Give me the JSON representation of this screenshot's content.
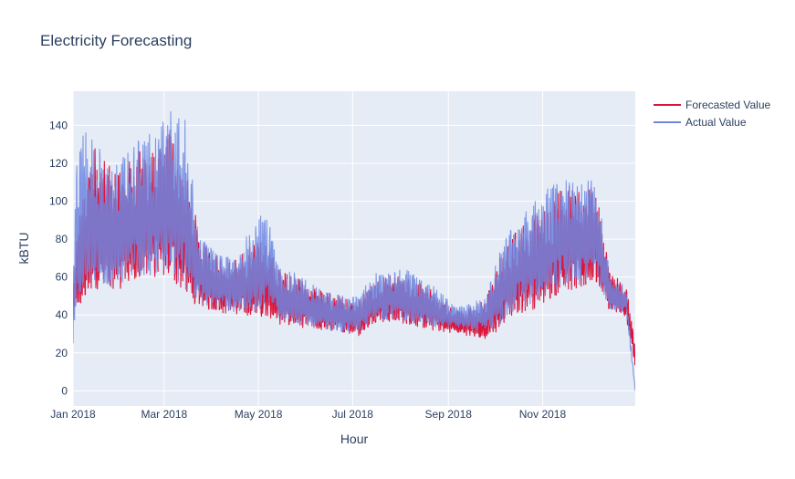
{
  "chart_data": {
    "type": "line",
    "title": "Electricity Forecasting",
    "xlabel": "Hour",
    "ylabel": "kBTU",
    "x_range": [
      "2018-01-01",
      "2018-12-31"
    ],
    "ylim": [
      -8,
      158
    ],
    "x_ticks": [
      {
        "label": "Jan 2018",
        "date": "2018-01-01"
      },
      {
        "label": "Mar 2018",
        "date": "2018-03-01"
      },
      {
        "label": "May 2018",
        "date": "2018-05-01"
      },
      {
        "label": "Jul 2018",
        "date": "2018-07-01"
      },
      {
        "label": "Sep 2018",
        "date": "2018-09-01"
      },
      {
        "label": "Nov 2018",
        "date": "2018-11-01"
      }
    ],
    "y_ticks": [
      0,
      20,
      40,
      60,
      80,
      100,
      120,
      140
    ],
    "grid": true,
    "legend": "right",
    "series": [
      {
        "name": "Forecasted Value",
        "color": "#dc143c",
        "envelope": {
          "dates": [
            "2018-01-01",
            "2018-01-04",
            "2018-01-15",
            "2018-01-25",
            "2018-02-05",
            "2018-02-15",
            "2018-02-25",
            "2018-03-05",
            "2018-03-15",
            "2018-03-25",
            "2018-04-05",
            "2018-04-15",
            "2018-04-28",
            "2018-05-05",
            "2018-05-15",
            "2018-05-25",
            "2018-06-05",
            "2018-06-15",
            "2018-06-25",
            "2018-07-05",
            "2018-07-15",
            "2018-07-25",
            "2018-08-05",
            "2018-08-15",
            "2018-08-25",
            "2018-09-05",
            "2018-09-15",
            "2018-09-25",
            "2018-10-05",
            "2018-10-15",
            "2018-10-25",
            "2018-11-05",
            "2018-11-15",
            "2018-11-25",
            "2018-12-05",
            "2018-12-15",
            "2018-12-25",
            "2018-12-31"
          ],
          "low": [
            35,
            40,
            50,
            48,
            52,
            55,
            56,
            55,
            45,
            42,
            40,
            38,
            35,
            38,
            32,
            32,
            32,
            30,
            30,
            28,
            35,
            35,
            34,
            32,
            30,
            30,
            28,
            26,
            30,
            38,
            40,
            45,
            50,
            50,
            55,
            40,
            38,
            10
          ],
          "high": [
            55,
            90,
            130,
            118,
            120,
            132,
            125,
            140,
            118,
            78,
            72,
            70,
            78,
            80,
            65,
            60,
            55,
            52,
            50,
            48,
            58,
            62,
            60,
            56,
            52,
            42,
            44,
            48,
            72,
            85,
            92,
            98,
            110,
            105,
            108,
            62,
            56,
            25
          ]
        }
      },
      {
        "name": "Actual Value",
        "color": "#6d86e0",
        "envelope": {
          "dates": [
            "2018-01-01",
            "2018-01-04",
            "2018-01-15",
            "2018-01-25",
            "2018-02-05",
            "2018-02-15",
            "2018-02-25",
            "2018-03-05",
            "2018-03-15",
            "2018-03-25",
            "2018-04-05",
            "2018-04-15",
            "2018-04-28",
            "2018-05-05",
            "2018-05-15",
            "2018-05-25",
            "2018-06-05",
            "2018-06-15",
            "2018-06-25",
            "2018-07-05",
            "2018-07-15",
            "2018-07-25",
            "2018-08-05",
            "2018-08-15",
            "2018-08-25",
            "2018-09-05",
            "2018-09-15",
            "2018-09-25",
            "2018-10-05",
            "2018-10-15",
            "2018-10-25",
            "2018-11-05",
            "2018-11-15",
            "2018-11-25",
            "2018-12-05",
            "2018-12-15",
            "2018-12-25",
            "2018-12-31"
          ],
          "low": [
            20,
            42,
            52,
            50,
            55,
            56,
            58,
            56,
            48,
            44,
            42,
            40,
            38,
            40,
            35,
            34,
            32,
            31,
            30,
            30,
            36,
            36,
            35,
            34,
            32,
            33,
            32,
            30,
            33,
            40,
            42,
            48,
            52,
            52,
            58,
            42,
            40,
            0
          ],
          "high": [
            60,
            140,
            133,
            118,
            125,
            136,
            138,
            150,
            143,
            80,
            74,
            70,
            88,
            100,
            68,
            62,
            56,
            52,
            50,
            50,
            63,
            64,
            64,
            58,
            54,
            44,
            46,
            50,
            75,
            92,
            98,
            108,
            112,
            108,
            114,
            60,
            55,
            0
          ]
        }
      }
    ]
  }
}
